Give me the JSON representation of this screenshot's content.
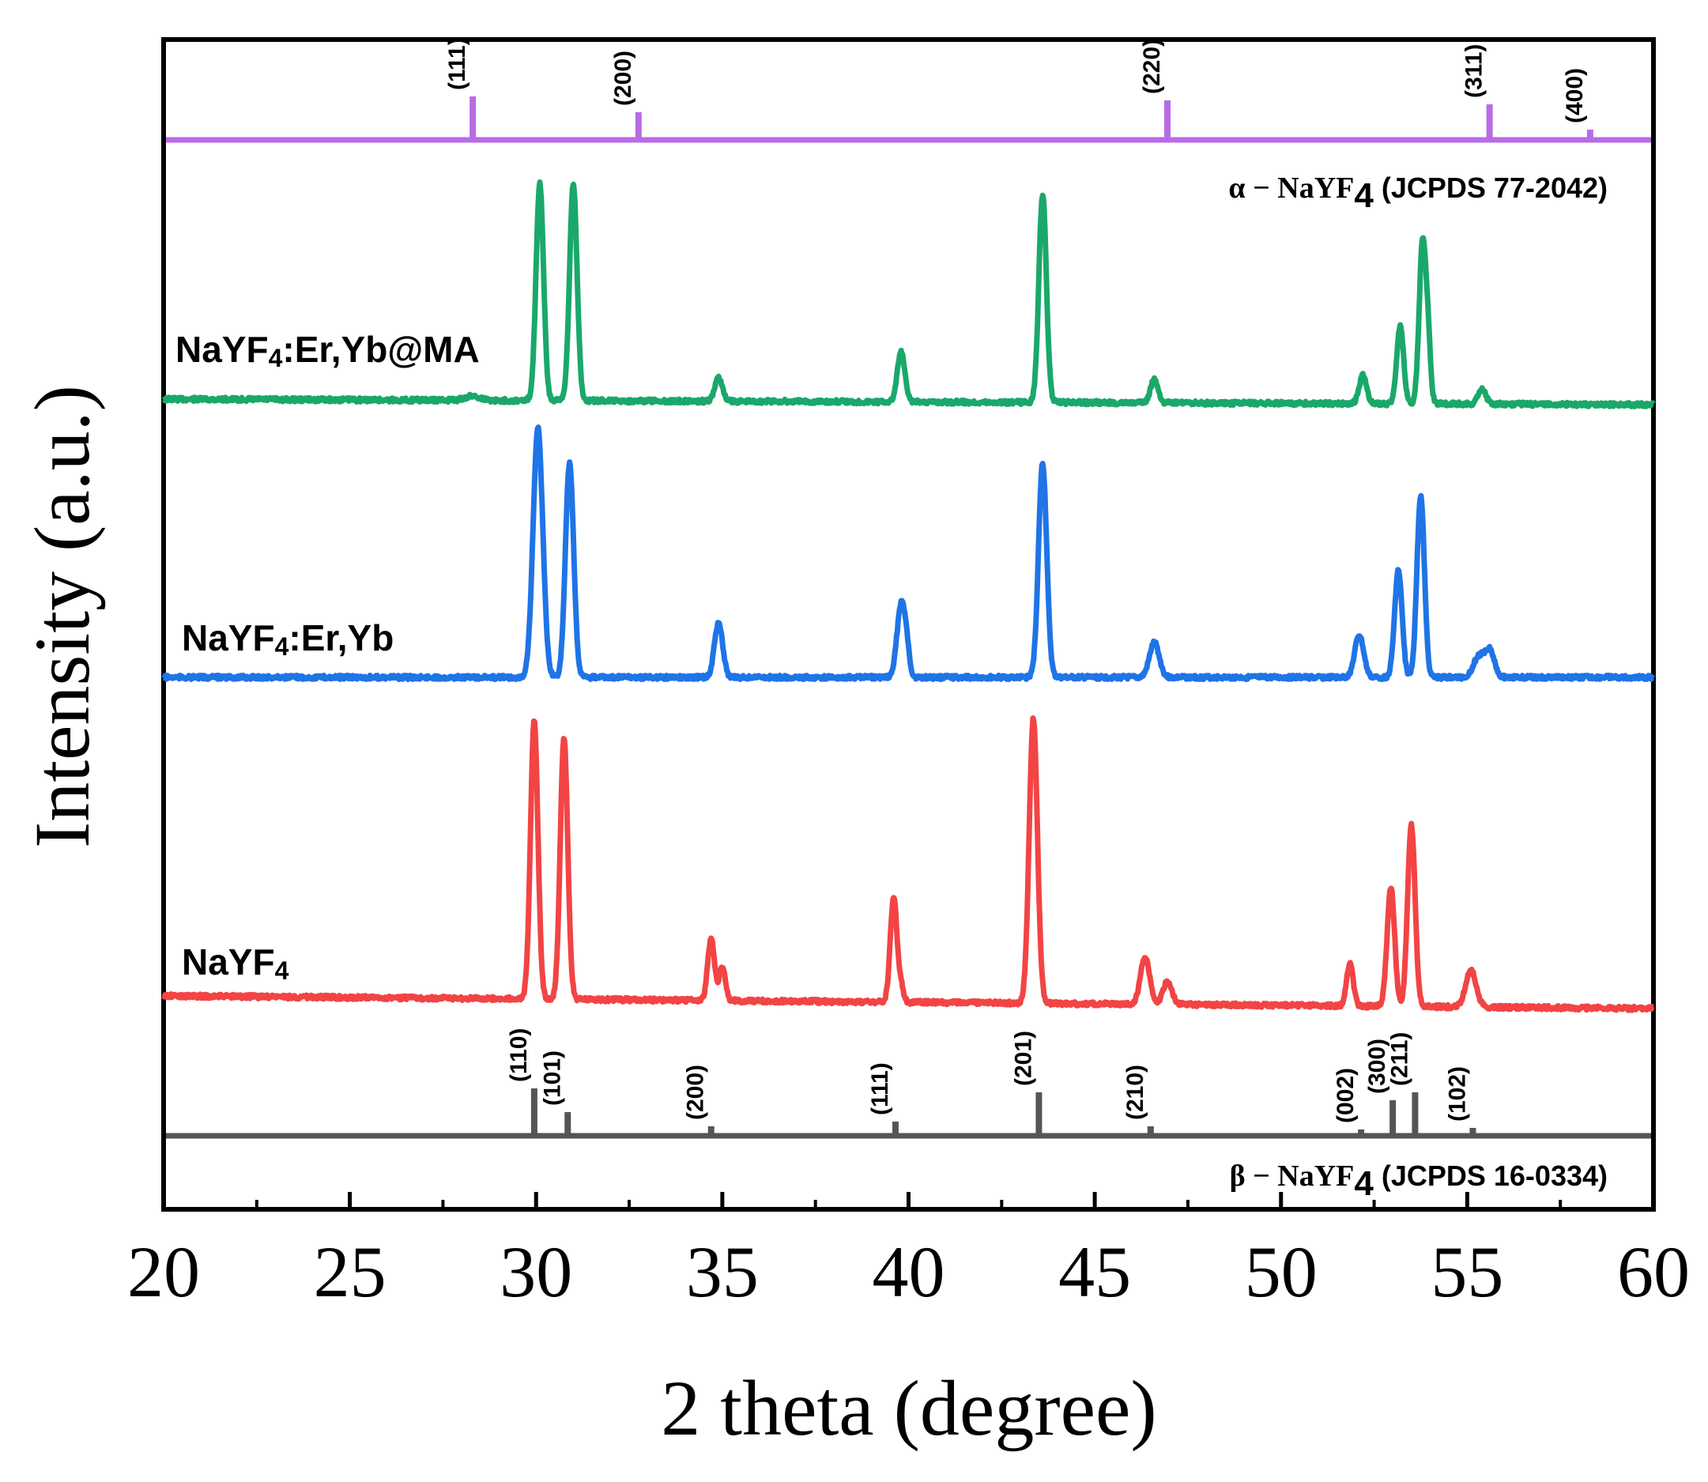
{
  "chart_data": {
    "type": "line",
    "xlabel": "2 theta (degree)",
    "ylabel": "Intensity (a.u.)",
    "xlim": [
      20,
      60
    ],
    "xticks": [
      "20",
      "25",
      "30",
      "35",
      "40",
      "45",
      "50",
      "55",
      "60"
    ],
    "series": [
      {
        "name": "NaYF4:Er,Yb@MA",
        "label_main": "NaYF",
        "label_sub": "4",
        "label_tail": ":Er,Yb@MA",
        "color": "#1aa86a",
        "baseline": 0.0,
        "peaks": [
          {
            "x": 28.3,
            "h": 0.02,
            "w": 0.2
          },
          {
            "x": 30.1,
            "h": 1.0,
            "w": 0.1
          },
          {
            "x": 31.0,
            "h": 1.0,
            "w": 0.1
          },
          {
            "x": 34.9,
            "h": 0.11,
            "w": 0.1
          },
          {
            "x": 39.8,
            "h": 0.23,
            "w": 0.1
          },
          {
            "x": 43.6,
            "h": 0.96,
            "w": 0.1
          },
          {
            "x": 46.6,
            "h": 0.11,
            "w": 0.1
          },
          {
            "x": 52.2,
            "h": 0.13,
            "w": 0.1
          },
          {
            "x": 53.2,
            "h": 0.36,
            "w": 0.09
          },
          {
            "x": 53.8,
            "h": 0.74,
            "w": 0.09
          },
          {
            "x": 53.95,
            "h": 0.25,
            "w": 0.07
          },
          {
            "x": 55.4,
            "h": 0.07,
            "w": 0.1
          }
        ]
      },
      {
        "name": "NaYF4:Er,Yb",
        "label_main": "NaYF",
        "label_sub": "4",
        "label_tail": ":Er,Yb",
        "color": "#1f74e6",
        "baseline": 0.0,
        "peaks": [
          {
            "x": 30.05,
            "h": 1.0,
            "w": 0.13
          },
          {
            "x": 30.9,
            "h": 0.86,
            "w": 0.11
          },
          {
            "x": 34.9,
            "h": 0.22,
            "w": 0.11
          },
          {
            "x": 39.8,
            "h": 0.29,
            "w": 0.11
          },
          {
            "x": 39.95,
            "h": 0.08,
            "w": 0.08
          },
          {
            "x": 43.6,
            "h": 0.86,
            "w": 0.11
          },
          {
            "x": 46.6,
            "h": 0.14,
            "w": 0.13
          },
          {
            "x": 52.1,
            "h": 0.17,
            "w": 0.12
          },
          {
            "x": 53.15,
            "h": 0.43,
            "w": 0.1
          },
          {
            "x": 53.75,
            "h": 0.73,
            "w": 0.1
          },
          {
            "x": 55.3,
            "h": 0.08,
            "w": 0.14
          },
          {
            "x": 55.6,
            "h": 0.11,
            "w": 0.13
          }
        ]
      },
      {
        "name": "NaYF4",
        "label_main": "NaYF",
        "label_sub": "4",
        "label_tail": "",
        "color": "#f24444",
        "baseline": 0.0,
        "peaks": [
          {
            "x": 29.95,
            "h": 0.98,
            "w": 0.1
          },
          {
            "x": 30.75,
            "h": 0.92,
            "w": 0.1
          },
          {
            "x": 34.7,
            "h": 0.22,
            "w": 0.09
          },
          {
            "x": 35.0,
            "h": 0.12,
            "w": 0.08
          },
          {
            "x": 39.6,
            "h": 0.37,
            "w": 0.09
          },
          {
            "x": 39.8,
            "h": 0.05,
            "w": 0.07
          },
          {
            "x": 43.35,
            "h": 1.0,
            "w": 0.11
          },
          {
            "x": 46.35,
            "h": 0.17,
            "w": 0.12
          },
          {
            "x": 46.95,
            "h": 0.08,
            "w": 0.12
          },
          {
            "x": 51.85,
            "h": 0.15,
            "w": 0.09
          },
          {
            "x": 52.95,
            "h": 0.42,
            "w": 0.1
          },
          {
            "x": 53.5,
            "h": 0.64,
            "w": 0.1
          },
          {
            "x": 55.1,
            "h": 0.13,
            "w": 0.14
          }
        ]
      }
    ],
    "references": {
      "alpha": {
        "title_prefix": "α − NaYF",
        "title_sub": "4",
        "title_suffix": " (JCPDS 77-2042)",
        "color": "#b96be6",
        "sticks": [
          {
            "x": 28.3,
            "h": 0.55,
            "hkl": "(111)"
          },
          {
            "x": 32.75,
            "h": 0.35,
            "hkl": "(200)"
          },
          {
            "x": 46.95,
            "h": 0.5,
            "hkl": "(220)"
          },
          {
            "x": 55.6,
            "h": 0.45,
            "hkl": "(311)"
          },
          {
            "x": 58.3,
            "h": 0.13,
            "hkl": "(400)"
          }
        ]
      },
      "beta": {
        "title_prefix": "β − NaYF",
        "title_sub": "4",
        "title_suffix": " (JCPDS 16-0334)",
        "color": "#555555",
        "sticks": [
          {
            "x": 29.95,
            "h": 0.6,
            "hkl": "(110)"
          },
          {
            "x": 30.85,
            "h": 0.3,
            "hkl": "(101)"
          },
          {
            "x": 34.7,
            "h": 0.12,
            "hkl": "(200)"
          },
          {
            "x": 39.65,
            "h": 0.18,
            "hkl": "(111)"
          },
          {
            "x": 43.5,
            "h": 0.55,
            "hkl": "(201)"
          },
          {
            "x": 46.5,
            "h": 0.12,
            "hkl": "(210)"
          },
          {
            "x": 52.15,
            "h": 0.08,
            "hkl": "(002)"
          },
          {
            "x": 53.0,
            "h": 0.45,
            "hkl": "(300)"
          },
          {
            "x": 53.6,
            "h": 0.55,
            "hkl": "(211)"
          },
          {
            "x": 55.15,
            "h": 0.1,
            "hkl": "(102)"
          }
        ]
      }
    }
  }
}
